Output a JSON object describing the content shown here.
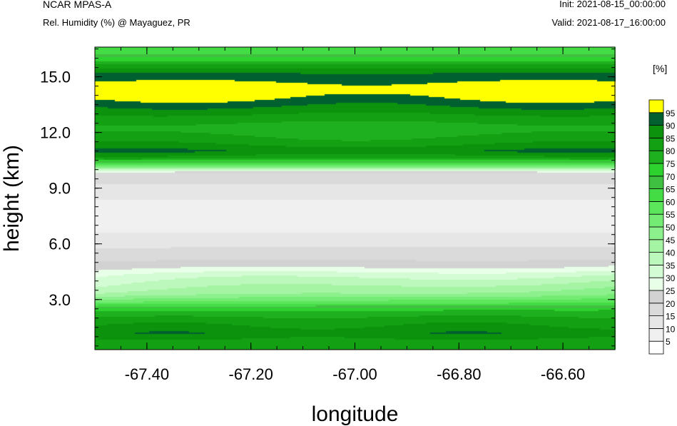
{
  "header": {
    "title_left": "NCAR MPAS-A",
    "subtitle_left": "Rel. Humidity (%) @ Mayaguez, PR",
    "init": "Init: 2021-08-15_00:00:00",
    "valid": "Valid: 2021-08-17_16:00:00"
  },
  "chart_data": {
    "type": "heatmap",
    "title": "Rel. Humidity (%) @ Mayaguez, PR",
    "xlabel": "longitude",
    "ylabel": "height (km)",
    "xlim": [
      -67.5,
      -66.5
    ],
    "ylim": [
      0.3,
      16.6
    ],
    "x_ticks": [
      -67.4,
      -67.2,
      -67.0,
      -66.8,
      -66.6
    ],
    "x_tick_labels": [
      "-67.40",
      "-67.20",
      "-67.00",
      "-66.80",
      "-66.60"
    ],
    "y_ticks": [
      3.0,
      6.0,
      9.0,
      12.0,
      15.0
    ],
    "y_tick_labels": [
      "3.0",
      "6.0",
      "9.0",
      "12.0",
      "15.0"
    ],
    "colorbar": {
      "unit_label": "[%]",
      "levels": [
        5,
        10,
        15,
        20,
        25,
        30,
        35,
        40,
        45,
        50,
        55,
        60,
        65,
        70,
        75,
        80,
        85,
        90,
        95
      ],
      "level_labels": [
        "5",
        "10",
        "15",
        "20",
        "25",
        "30",
        "35",
        "40",
        "45",
        "50",
        "55",
        "60",
        "65",
        "70",
        "75",
        "80",
        "85",
        "90",
        "95"
      ],
      "colors": [
        "#ffffff",
        "#f0f0f0",
        "#e6e6e6",
        "#dadada",
        "#d2d2d2",
        "#e8ffe8",
        "#d4fcd4",
        "#bcf8bc",
        "#a4f4a4",
        "#8cf08c",
        "#74ec74",
        "#5ce65c",
        "#44dc44",
        "#40c040",
        "#2ed22e",
        "#1fb01f",
        "#13a013",
        "#0c920c",
        "#006030",
        "#ffff00"
      ]
    },
    "profile": [
      {
        "z": 0.3,
        "rh": 80
      },
      {
        "z": 0.8,
        "rh": 81
      },
      {
        "z": 1.2,
        "rh": 86
      },
      {
        "z": 1.6,
        "rh": 82
      },
      {
        "z": 2.0,
        "rh": 78
      },
      {
        "z": 2.4,
        "rh": 72
      },
      {
        "z": 2.8,
        "rh": 56
      },
      {
        "z": 3.3,
        "rh": 42
      },
      {
        "z": 3.8,
        "rh": 36
      },
      {
        "z": 4.3,
        "rh": 30
      },
      {
        "z": 4.7,
        "rh": 22
      },
      {
        "z": 5.2,
        "rh": 16
      },
      {
        "z": 5.8,
        "rh": 12
      },
      {
        "z": 6.5,
        "rh": 8
      },
      {
        "z": 7.2,
        "rh": 3
      },
      {
        "z": 7.8,
        "rh": 3
      },
      {
        "z": 8.5,
        "rh": 8
      },
      {
        "z": 9.2,
        "rh": 12
      },
      {
        "z": 9.8,
        "rh": 15
      },
      {
        "z": 10.2,
        "rh": 52
      },
      {
        "z": 10.6,
        "rh": 78
      },
      {
        "z": 11.0,
        "rh": 87
      },
      {
        "z": 11.5,
        "rh": 80
      },
      {
        "z": 12.2,
        "rh": 74
      },
      {
        "z": 12.8,
        "rh": 80
      },
      {
        "z": 13.3,
        "rh": 86
      },
      {
        "z": 13.8,
        "rh": 92
      },
      {
        "z": 14.3,
        "rh": 97
      },
      {
        "z": 14.8,
        "rh": 91
      },
      {
        "z": 15.3,
        "rh": 86
      },
      {
        "z": 15.8,
        "rh": 74
      },
      {
        "z": 16.2,
        "rh": 62
      },
      {
        "z": 16.6,
        "rh": 58
      }
    ]
  }
}
